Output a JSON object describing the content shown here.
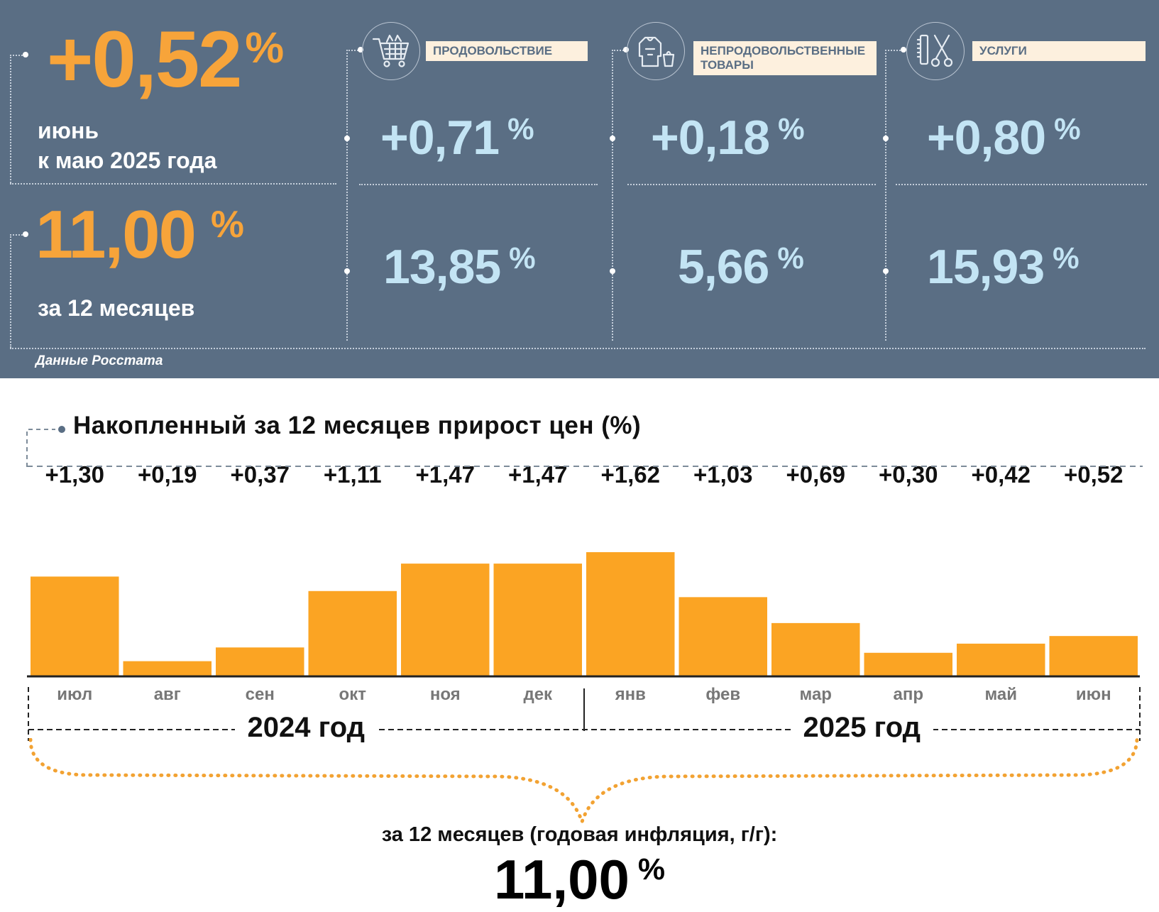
{
  "monthly": {
    "value": "+0,52",
    "unit": "%",
    "label_line1": "июнь",
    "label_line2": "к маю 2025 года"
  },
  "annual": {
    "value": "11,00",
    "unit": "%",
    "label": "за 12 месяцев"
  },
  "categories": [
    {
      "label": "продовольствие",
      "icon": "shopping-cart-icon",
      "monthly": "+0,71",
      "annual": "13,85",
      "unit": "%"
    },
    {
      "label": "непродовольственные товары",
      "icon": "clothing-icon",
      "monthly": "+0,18",
      "annual": "5,66",
      "unit": "%"
    },
    {
      "label": "услуги",
      "icon": "scissors-comb-icon",
      "monthly": "+0,80",
      "annual": "15,93",
      "unit": "%"
    }
  ],
  "source": "Данные Росстата",
  "colors": {
    "panel_bg": "#5a6e84",
    "accent_orange": "#f7a43a",
    "value_blue": "#c3e4f4",
    "label_bg": "#fdf0de",
    "bar": "#fba423"
  },
  "chart_data": {
    "type": "bar",
    "title": "Накопленный за 12 месяцев прирост цен (%)",
    "categories": [
      "июл",
      "авг",
      "сен",
      "окт",
      "ноя",
      "дек",
      "янв",
      "фев",
      "мар",
      "апр",
      "май",
      "июн"
    ],
    "values": [
      1.3,
      0.19,
      0.37,
      1.11,
      1.47,
      1.47,
      1.62,
      1.03,
      0.69,
      0.3,
      0.42,
      0.52
    ],
    "value_labels": [
      "+1,30",
      "+0,19",
      "+0,37",
      "+1,11",
      "+1,47",
      "+1,47",
      "+1,62",
      "+1,03",
      "+0,69",
      "+0,30",
      "+0,42",
      "+0,52"
    ],
    "years": [
      {
        "label": "2024 год",
        "months": 6
      },
      {
        "label": "2025 год",
        "months": 6
      }
    ],
    "grid": false,
    "total_caption": "за 12 месяцев (годовая инфляция, г/г):",
    "total_value": "11,00",
    "total_unit": "%"
  }
}
